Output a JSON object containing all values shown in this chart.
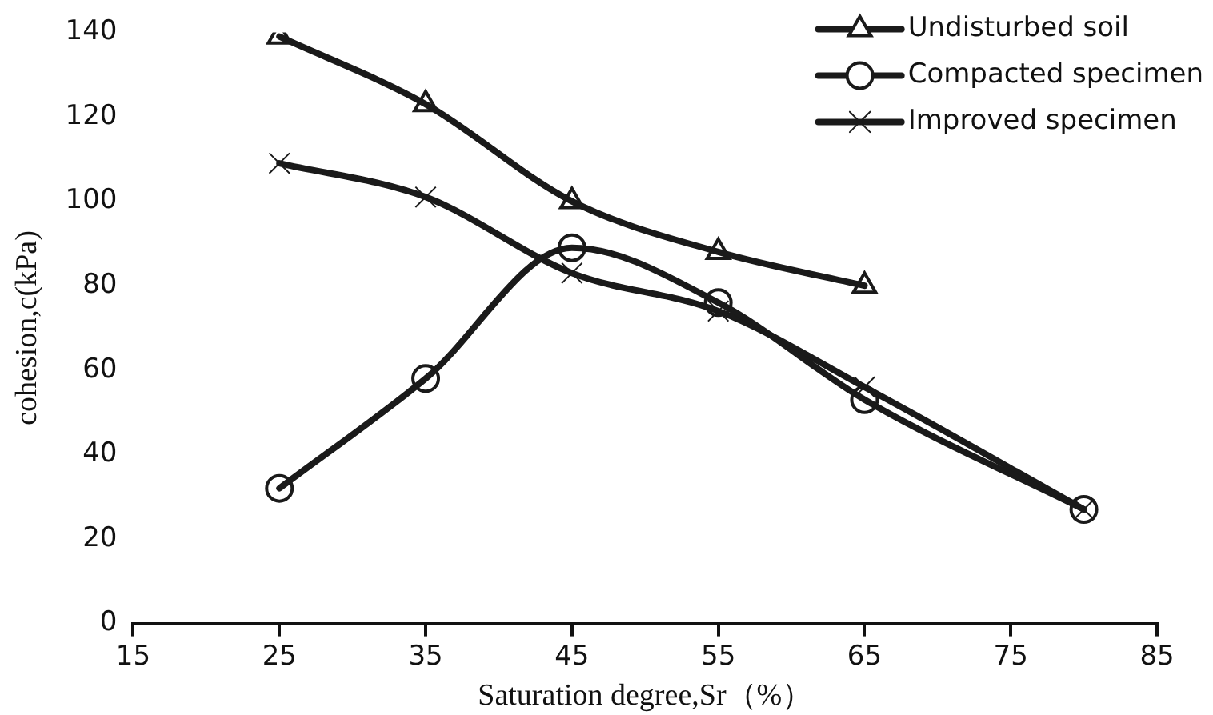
{
  "chart_data": {
    "type": "line",
    "xlabel": "Saturation degree,Sr（%）",
    "ylabel": "cohesion,c(kPa)",
    "xlim": [
      15,
      85
    ],
    "xticks": [
      15,
      25,
      35,
      45,
      55,
      65,
      75,
      85
    ],
    "ylim": [
      0,
      140
    ],
    "yticks": [
      0,
      20,
      40,
      60,
      80,
      100,
      120,
      140
    ],
    "grid": false,
    "legend": "top right",
    "series": [
      {
        "name": "Undisturbed soil",
        "color": "#1a1a1a",
        "marker": "triangle",
        "x": [
          25,
          35,
          45,
          55,
          65
        ],
        "values": [
          139,
          123,
          100,
          88,
          80
        ]
      },
      {
        "name": "Compacted specimen",
        "color": "#1a1a1a",
        "marker": "circle",
        "x": [
          25,
          35,
          45,
          55,
          65,
          80
        ],
        "values": [
          32,
          58,
          89,
          76,
          53,
          27
        ]
      },
      {
        "name": "Improved specimen",
        "color": "#1a1a1a",
        "marker": "cross",
        "x": [
          25,
          35,
          45,
          55,
          65,
          80
        ],
        "values": [
          109,
          101,
          83,
          74,
          56,
          27
        ]
      }
    ]
  }
}
